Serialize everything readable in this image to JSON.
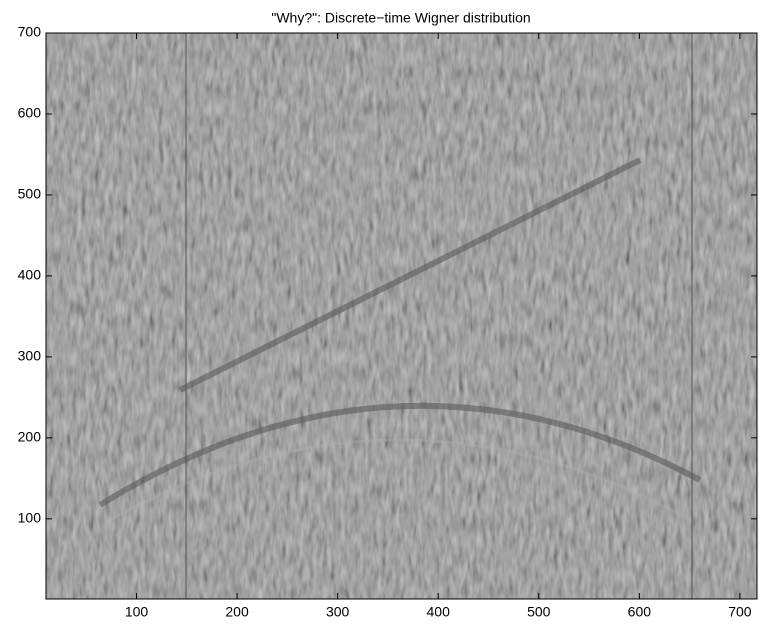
{
  "chart_data": {
    "type": "image",
    "title": "\"Why?\": Discrete−time Wigner distribution",
    "xlim": [
      10,
      717
    ],
    "ylim": [
      1,
      700
    ],
    "xticks": [
      100,
      200,
      300,
      400,
      500,
      600,
      700
    ],
    "yticks": [
      100,
      200,
      300,
      400,
      500,
      600,
      700
    ]
  }
}
